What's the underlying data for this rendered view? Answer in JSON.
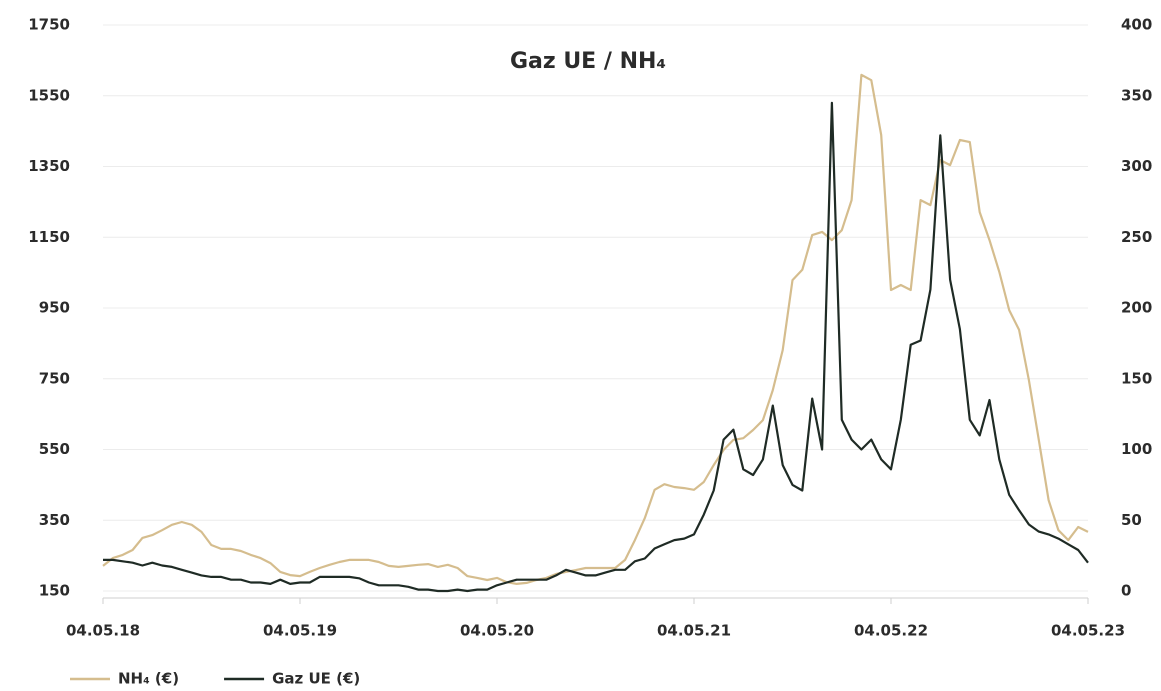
{
  "chart_data": {
    "type": "line",
    "title": "Gaz UE / NH₄",
    "x": [
      2018,
      2018.05,
      2018.1,
      2018.15,
      2018.2,
      2018.25,
      2018.3,
      2018.35,
      2018.4,
      2018.45,
      2018.5,
      2018.55,
      2018.6,
      2018.65,
      2018.7,
      2018.75,
      2018.8,
      2018.85,
      2018.9,
      2018.95,
      2019,
      2019.05,
      2019.1,
      2019.15,
      2019.2,
      2019.25,
      2019.3,
      2019.35,
      2019.4,
      2019.45,
      2019.5,
      2019.55,
      2019.6,
      2019.65,
      2019.7,
      2019.75,
      2019.8,
      2019.85,
      2019.9,
      2019.95,
      2020,
      2020.05,
      2020.1,
      2020.15,
      2020.2,
      2020.25,
      2020.3,
      2020.35,
      2020.4,
      2020.45,
      2020.5,
      2020.55,
      2020.6,
      2020.65,
      2020.7,
      2020.75,
      2020.8,
      2020.85,
      2020.9,
      2020.95,
      2021,
      2021.05,
      2021.1,
      2021.15,
      2021.2,
      2021.25,
      2021.3,
      2021.35,
      2021.4,
      2021.45,
      2021.5,
      2021.55,
      2021.6,
      2021.65,
      2021.7,
      2021.75,
      2021.8,
      2021.85,
      2021.9,
      2021.95,
      2022,
      2022.05,
      2022.1,
      2022.15,
      2022.2,
      2022.25,
      2022.3,
      2022.35,
      2022.4,
      2022.45,
      2022.5,
      2022.55,
      2022.6,
      2022.65,
      2022.7,
      2022.75,
      2022.8,
      2022.85,
      2022.9,
      2022.95,
      2023
    ],
    "series": [
      {
        "name": "NH₄ (€)",
        "color": "#d5bd8e",
        "axis": "y",
        "values": [
          221,
          243,
          252,
          266,
          300,
          308,
          322,
          337,
          345,
          337,
          317,
          280,
          269,
          269,
          263,
          252,
          243,
          229,
          204,
          195,
          192,
          204,
          215,
          224,
          232,
          238,
          238,
          238,
          232,
          221,
          218,
          221,
          224,
          226,
          218,
          224,
          215,
          192,
          187,
          181,
          187,
          175,
          170,
          173,
          181,
          187,
          198,
          204,
          209,
          215,
          215,
          215,
          215,
          238,
          294,
          356,
          436,
          452,
          444,
          441,
          436,
          458,
          506,
          549,
          577,
          582,
          605,
          633,
          718,
          831,
          1029,
          1058,
          1156,
          1165,
          1142,
          1170,
          1255,
          1609,
          1594,
          1439,
          1001,
          1015,
          1001,
          1255,
          1241,
          1368,
          1354,
          1425,
          1419,
          1221,
          1142,
          1052,
          944,
          888,
          746,
          577,
          407,
          322,
          294,
          331,
          317
        ]
      },
      {
        "name": "Gaz UE (€)",
        "color": "#1f2b25",
        "axis": "y2",
        "values": [
          22,
          22,
          21,
          20,
          18,
          20,
          18,
          17,
          15,
          13,
          11,
          10,
          10,
          8,
          8,
          6,
          6,
          5,
          8,
          5,
          6,
          6,
          10,
          10,
          10,
          10,
          9,
          6,
          4,
          4,
          4,
          3,
          1,
          1,
          0,
          0,
          1,
          0,
          1,
          1,
          4,
          6,
          8,
          8,
          8,
          8,
          11,
          15,
          13,
          11,
          11,
          13,
          15,
          15,
          21,
          23,
          30,
          33,
          36,
          37,
          40,
          54,
          71,
          107,
          114,
          86,
          82,
          93,
          131,
          89,
          75,
          71,
          136,
          100,
          345,
          121,
          107,
          100,
          107,
          93,
          86,
          121,
          174,
          177,
          213,
          322,
          220,
          185,
          121,
          110,
          135,
          93,
          68,
          57,
          47,
          42,
          40,
          37,
          33,
          29,
          20
        ]
      }
    ],
    "xlim": [
      2018,
      2023
    ],
    "xticks": [
      {
        "value": 2018,
        "label": "04.05.18"
      },
      {
        "value": 2019,
        "label": "04.05.19"
      },
      {
        "value": 2020,
        "label": "04.05.20"
      },
      {
        "value": 2021,
        "label": "04.05.21"
      },
      {
        "value": 2022,
        "label": "04.05.22"
      },
      {
        "value": 2023,
        "label": "04.05.23"
      }
    ],
    "ylim": [
      150,
      1750
    ],
    "yticks": [
      150,
      350,
      550,
      750,
      950,
      1150,
      1350,
      1550,
      1750
    ],
    "y2lim": [
      0,
      400
    ],
    "y2ticks": [
      0,
      50,
      100,
      150,
      200,
      250,
      300,
      350,
      400
    ],
    "grid": true,
    "legend": "bottom-left"
  }
}
